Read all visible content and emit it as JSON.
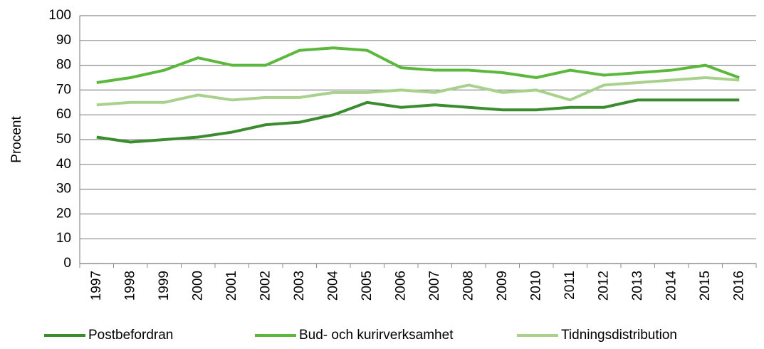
{
  "chart_data": {
    "type": "line",
    "y_label": "Procent",
    "categories": [
      "1997",
      "1998",
      "1999",
      "2000",
      "2001",
      "2002",
      "2003",
      "2004",
      "2005",
      "2006",
      "2007",
      "2008",
      "2009",
      "2010",
      "2011",
      "2012",
      "2013",
      "2014",
      "2015",
      "2016"
    ],
    "series": [
      {
        "name": "Postbefordran",
        "color": "#3b8c2f",
        "values": [
          51,
          49,
          50,
          51,
          53,
          56,
          57,
          60,
          65,
          63,
          64,
          63,
          62,
          62,
          63,
          63,
          66,
          66,
          66,
          66
        ]
      },
      {
        "name": "Bud- och kurirverksamhet",
        "color": "#5cb83c",
        "values": [
          73,
          75,
          78,
          83,
          80,
          80,
          86,
          87,
          86,
          79,
          78,
          78,
          77,
          75,
          78,
          76,
          77,
          78,
          80,
          75
        ]
      },
      {
        "name": "Tidningsdistribution",
        "color": "#a9d18e",
        "values": [
          64,
          65,
          65,
          68,
          66,
          67,
          67,
          69,
          69,
          70,
          69,
          72,
          69,
          70,
          66,
          72,
          73,
          74,
          75,
          74
        ]
      }
    ],
    "ylim": [
      0,
      100
    ],
    "yticks": [
      0,
      10,
      20,
      30,
      40,
      50,
      60,
      70,
      80,
      90,
      100
    ],
    "grid": true,
    "legend": "bottom"
  }
}
